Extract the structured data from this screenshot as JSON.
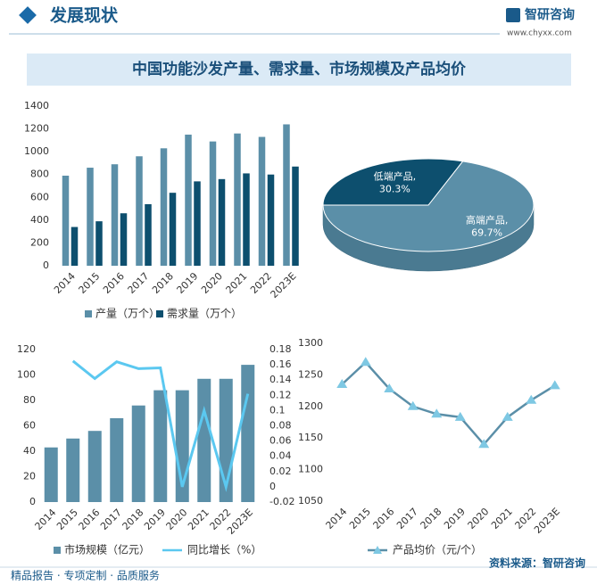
{
  "header": {
    "title": "发展现状",
    "brand": "智研咨询",
    "url": "www.chyxx.com"
  },
  "main_title": "中国功能沙发产量、需求量、市场规模及产品均价",
  "chart_data": [
    {
      "type": "bar",
      "categories": [
        "2014",
        "2015",
        "2016",
        "2017",
        "2018",
        "2019",
        "2020",
        "2021",
        "2022",
        "2023E"
      ],
      "series": [
        {
          "name": "产量（万个）",
          "color": "#5b8fa8",
          "values": [
            790,
            860,
            890,
            960,
            1030,
            1150,
            1090,
            1160,
            1130,
            1240
          ]
        },
        {
          "name": "需求量（万个）",
          "color": "#0d4f6e",
          "values": [
            340,
            390,
            460,
            540,
            640,
            740,
            760,
            810,
            800,
            870
          ]
        }
      ],
      "ylim": [
        0,
        1400
      ],
      "yticks": [
        0,
        200,
        400,
        600,
        800,
        1000,
        1200,
        1400
      ]
    },
    {
      "type": "pie",
      "categories": [
        "高端产品,",
        "低端产品,"
      ],
      "values": [
        69.7,
        30.3
      ],
      "value_labels": [
        "69.7%",
        "30.3%"
      ],
      "colors": [
        "#5b8fa8",
        "#0d4f6e"
      ]
    },
    {
      "type": "bar_line",
      "categories": [
        "2014",
        "2015",
        "2016",
        "2017",
        "2018",
        "2019",
        "2020",
        "2021",
        "2022",
        "2023E"
      ],
      "series": [
        {
          "name": "市场规模（亿元）",
          "color": "#5b8fa8",
          "values": [
            43,
            50,
            56,
            66,
            76,
            88,
            88,
            97,
            97,
            108
          ]
        },
        {
          "name": "同比增长（%）",
          "color": "#5bc8f0",
          "axis": "y2",
          "values": [
            null,
            0.165,
            0.142,
            0.164,
            0.155,
            0.156,
            0,
            0.1,
            0,
            0.122
          ]
        }
      ],
      "ylim": [
        0,
        120
      ],
      "yticks": [
        0,
        20,
        40,
        60,
        80,
        100,
        120
      ],
      "y2lim": [
        -0.02,
        0.18
      ],
      "y2ticks": [
        -0.02,
        0,
        0.02,
        0.04,
        0.06,
        0.08,
        0.1,
        0.12,
        0.14,
        0.16,
        0.18
      ]
    },
    {
      "type": "line",
      "categories": [
        "2014",
        "2015",
        "2016",
        "2017",
        "2018",
        "2019",
        "2020",
        "2021",
        "2022",
        "2023E"
      ],
      "series": [
        {
          "name": "产品均价（元/个）",
          "color": "#5b8fa8",
          "marker_color": "#7ec8e3",
          "values": [
            1235,
            1270,
            1228,
            1200,
            1188,
            1183,
            1140,
            1183,
            1210,
            1233
          ]
        }
      ],
      "ylim": [
        1050,
        1300
      ],
      "yticks": [
        1050,
        1100,
        1150,
        1200,
        1250,
        1300
      ]
    }
  ],
  "footer": {
    "slogan": "精品报告 · 专项定制 · 品质服务",
    "source": "资料来源：智研咨询"
  }
}
